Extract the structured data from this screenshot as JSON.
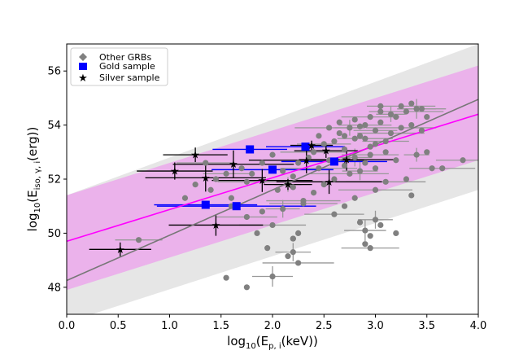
{
  "chart_data": {
    "type": "scatter",
    "title": "",
    "xlabel": "log10(Ep,i(keV))",
    "ylabel": "log10(Eiso,γ,i(erg))",
    "xlabel_parts": {
      "base": "log",
      "sub": "10",
      "open": "(E",
      "sub2": "p, i",
      "close": "(keV))"
    },
    "ylabel_parts": {
      "base": "log",
      "sub": "10",
      "open": "(E",
      "sub2": "iso, γ, i",
      "close": "(erg))"
    },
    "xlim": [
      0.0,
      4.0
    ],
    "ylim": [
      47.0,
      57.0
    ],
    "x_ticks": [
      0.0,
      0.5,
      1.0,
      1.5,
      2.0,
      2.5,
      3.0,
      3.5,
      4.0
    ],
    "x_tick_labels": [
      "0.0",
      "0.5",
      "1.0",
      "1.5",
      "2.0",
      "2.5",
      "3.0",
      "3.5",
      "4.0"
    ],
    "y_ticks": [
      48,
      50,
      52,
      54,
      56
    ],
    "y_tick_labels": [
      "48",
      "50",
      "52",
      "54",
      "56"
    ],
    "grid": false,
    "legend_position": "top-left",
    "colors": {
      "other": "#808080",
      "gold": "#0000ff",
      "silver": "#000000",
      "fit_all": "#777777",
      "fit_sample": "#ff00ff",
      "band_outer": "#e6e6e6",
      "band_inner": "#ebb2eb"
    },
    "bands": [
      {
        "name": "outer-scatter-band",
        "x": [
          0,
          4
        ],
        "lower": [
          46.7,
          51.6
        ],
        "upper": [
          51.4,
          57.0
        ]
      },
      {
        "name": "inner-scatter-band",
        "x": [
          0,
          4
        ],
        "lower": [
          47.9,
          52.7
        ],
        "upper": [
          51.4,
          56.2
        ]
      }
    ],
    "fit_lines": [
      {
        "name": "fit-all-grbs",
        "x": [
          0,
          4
        ],
        "y": [
          48.25,
          54.95
        ]
      },
      {
        "name": "fit-gold-silver",
        "x": [
          0,
          4
        ],
        "y": [
          49.7,
          54.4
        ]
      }
    ],
    "legend": [
      "Other GRBs",
      "Gold sample",
      "Silver sample"
    ],
    "series": [
      {
        "name": "Other GRBs",
        "marker": "circle",
        "points": [
          [
            0.7,
            49.75
          ],
          [
            1.15,
            51.3
          ],
          [
            1.4,
            51.6
          ],
          [
            1.6,
            51.3
          ],
          [
            1.75,
            51.9
          ],
          [
            1.8,
            52.2
          ],
          [
            1.9,
            52.6
          ],
          [
            2.0,
            52.9
          ],
          [
            2.05,
            51.6
          ],
          [
            2.1,
            52.3
          ],
          [
            2.15,
            51.8
          ],
          [
            2.2,
            52.1
          ],
          [
            2.25,
            52.6
          ],
          [
            2.3,
            51.2
          ],
          [
            2.35,
            52.8
          ],
          [
            2.4,
            53.0
          ],
          [
            2.45,
            52.4
          ],
          [
            2.5,
            53.3
          ],
          [
            2.55,
            52.7
          ],
          [
            2.6,
            53.4
          ],
          [
            2.65,
            53.7
          ],
          [
            2.7,
            53.1
          ],
          [
            2.75,
            53.9
          ],
          [
            2.8,
            53.5
          ],
          [
            2.85,
            53.6
          ],
          [
            2.9,
            54.0
          ],
          [
            2.95,
            53.2
          ],
          [
            3.0,
            53.8
          ],
          [
            3.05,
            54.1
          ],
          [
            3.1,
            53.4
          ],
          [
            3.15,
            53.7
          ],
          [
            3.2,
            54.3
          ],
          [
            3.25,
            53.9
          ],
          [
            3.3,
            54.5
          ],
          [
            3.35,
            54.0
          ],
          [
            3.4,
            54.6
          ],
          [
            3.45,
            53.8
          ],
          [
            3.5,
            54.3
          ],
          [
            2.9,
            53.5
          ],
          [
            2.95,
            52.9
          ],
          [
            3.0,
            53.3
          ],
          [
            2.7,
            52.5
          ],
          [
            2.6,
            52.0
          ],
          [
            2.8,
            52.8
          ],
          [
            2.9,
            52.6
          ],
          [
            3.1,
            53.0
          ],
          [
            3.2,
            52.7
          ],
          [
            2.85,
            52.3
          ],
          [
            2.75,
            52.2
          ],
          [
            3.0,
            52.4
          ],
          [
            2.5,
            51.8
          ],
          [
            2.4,
            51.5
          ],
          [
            2.3,
            51.1
          ],
          [
            2.2,
            51.7
          ],
          [
            2.1,
            50.9
          ],
          [
            1.9,
            50.8
          ],
          [
            1.75,
            50.6
          ],
          [
            2.0,
            50.3
          ],
          [
            2.25,
            50.0
          ],
          [
            2.2,
            49.8
          ],
          [
            1.85,
            50.0
          ],
          [
            2.6,
            50.7
          ],
          [
            2.7,
            51.0
          ],
          [
            2.85,
            50.4
          ],
          [
            2.9,
            50.1
          ],
          [
            2.95,
            49.9
          ],
          [
            3.0,
            50.5
          ],
          [
            3.05,
            50.3
          ],
          [
            3.2,
            50.0
          ],
          [
            3.0,
            51.6
          ],
          [
            2.8,
            51.3
          ],
          [
            3.1,
            51.9
          ],
          [
            3.3,
            52.0
          ],
          [
            3.4,
            52.9
          ],
          [
            3.55,
            52.4
          ],
          [
            3.65,
            52.4
          ],
          [
            3.85,
            52.7
          ],
          [
            3.5,
            53.0
          ],
          [
            2.9,
            49.6
          ],
          [
            2.95,
            49.45
          ],
          [
            2.2,
            49.3
          ],
          [
            2.15,
            49.15
          ],
          [
            2.25,
            48.9
          ],
          [
            2.2,
            49.8
          ],
          [
            1.95,
            49.45
          ],
          [
            1.75,
            48.0
          ],
          [
            1.55,
            48.35
          ],
          [
            2.0,
            48.4
          ],
          [
            3.35,
            51.4
          ],
          [
            1.25,
            51.8
          ],
          [
            1.55,
            52.2
          ],
          [
            1.35,
            52.6
          ],
          [
            1.6,
            51.0
          ],
          [
            1.45,
            52.0
          ],
          [
            1.7,
            52.4
          ],
          [
            2.45,
            53.6
          ],
          [
            2.55,
            53.9
          ],
          [
            2.65,
            54.1
          ],
          [
            2.8,
            54.2
          ],
          [
            2.95,
            54.3
          ],
          [
            3.05,
            54.5
          ],
          [
            3.15,
            54.4
          ],
          [
            3.25,
            54.7
          ],
          [
            3.35,
            54.8
          ],
          [
            3.45,
            54.6
          ],
          [
            3.05,
            54.7
          ],
          [
            2.85,
            53.95
          ],
          [
            2.7,
            53.6
          ]
        ]
      },
      {
        "name": "Gold sample",
        "marker": "square",
        "points": [
          [
            1.78,
            53.1
          ],
          [
            2.32,
            53.2
          ],
          [
            2.6,
            52.65
          ],
          [
            1.35,
            51.05
          ],
          [
            1.65,
            51.0
          ],
          [
            2.0,
            52.35
          ]
        ]
      },
      {
        "name": "Silver sample",
        "marker": "star",
        "points": [
          [
            0.52,
            49.4
          ],
          [
            1.05,
            52.3
          ],
          [
            1.25,
            52.9
          ],
          [
            1.35,
            52.05
          ],
          [
            1.45,
            50.3
          ],
          [
            1.62,
            52.55
          ],
          [
            1.9,
            51.95
          ],
          [
            2.15,
            51.8
          ],
          [
            2.33,
            52.7
          ],
          [
            2.38,
            53.25
          ],
          [
            2.52,
            53.05
          ],
          [
            2.55,
            51.9
          ],
          [
            2.72,
            52.72
          ]
        ]
      }
    ]
  }
}
